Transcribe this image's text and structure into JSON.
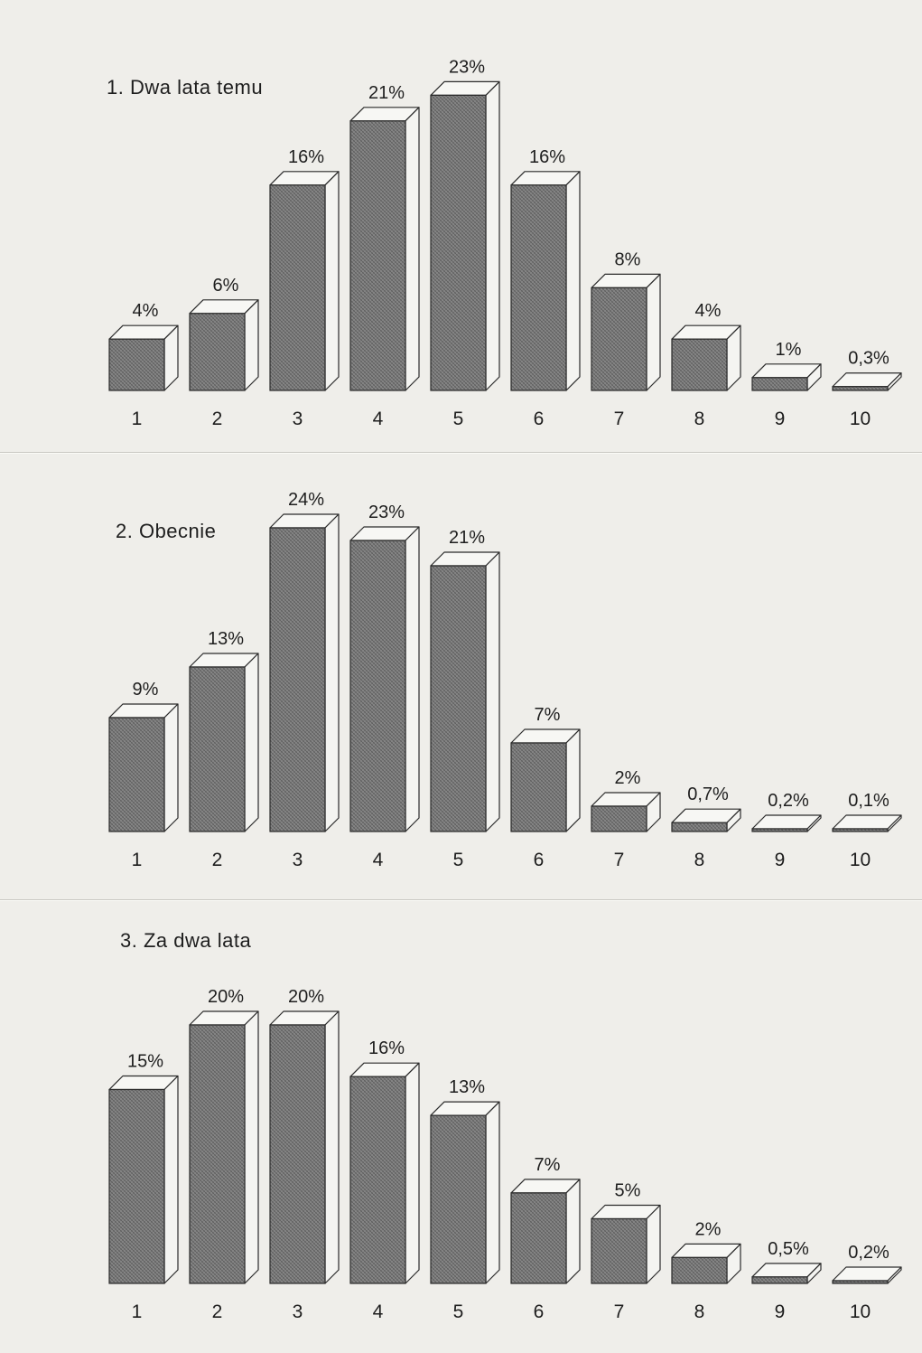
{
  "chart_data": [
    {
      "type": "bar",
      "title": "1. Dwa lata temu",
      "categories": [
        "1",
        "2",
        "3",
        "4",
        "5",
        "6",
        "7",
        "8",
        "9",
        "10"
      ],
      "values": [
        4,
        6,
        16,
        21,
        23,
        16,
        8,
        4,
        1,
        0.3
      ],
      "value_labels": [
        "4%",
        "6%",
        "16%",
        "21%",
        "23%",
        "16%",
        "8%",
        "4%",
        "1%",
        "0,3%"
      ]
    },
    {
      "type": "bar",
      "title": "2. Obecnie",
      "categories": [
        "1",
        "2",
        "3",
        "4",
        "5",
        "6",
        "7",
        "8",
        "9",
        "10"
      ],
      "values": [
        9,
        13,
        24,
        23,
        21,
        7,
        2,
        0.7,
        0.2,
        0.1
      ],
      "value_labels": [
        "9%",
        "13%",
        "24%",
        "23%",
        "21%",
        "7%",
        "2%",
        "0,7%",
        "0,2%",
        "0,1%"
      ]
    },
    {
      "type": "bar",
      "title": "3. Za dwa lata",
      "categories": [
        "1",
        "2",
        "3",
        "4",
        "5",
        "6",
        "7",
        "8",
        "9",
        "10"
      ],
      "values": [
        15,
        20,
        20,
        16,
        13,
        7,
        5,
        2,
        0.5,
        0.2
      ],
      "value_labels": [
        "15%",
        "20%",
        "20%",
        "16%",
        "13%",
        "7%",
        "5%",
        "2%",
        "0,5%",
        "0,2%"
      ]
    }
  ],
  "colors": {
    "bar_front": "#8a8a8a",
    "bar_side": "#f4f4f1",
    "bar_top": "#f7f7f4",
    "outline": "#2b2b2b",
    "text": "#1e1e1e"
  }
}
